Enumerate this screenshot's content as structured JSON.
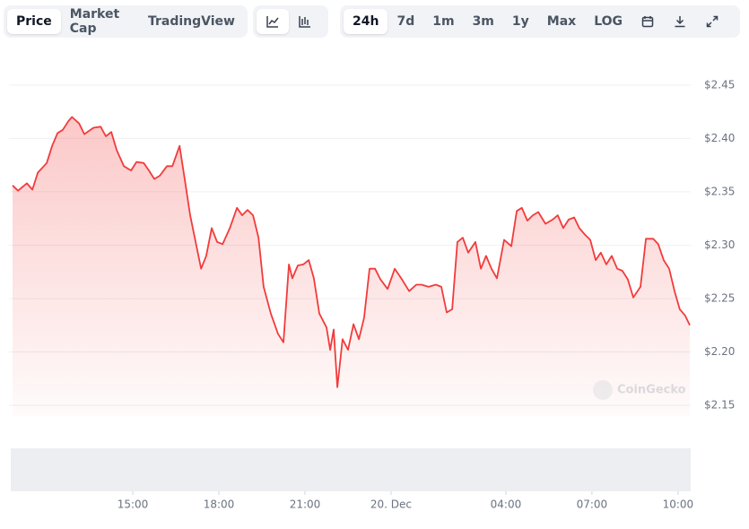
{
  "toolbar": {
    "views": [
      "Price",
      "Market Cap",
      "TradingView"
    ],
    "ranges": [
      "24h",
      "7d",
      "1m",
      "3m",
      "1y",
      "Max",
      "LOG"
    ]
  },
  "watermark": "CoinGecko",
  "chart_data": {
    "type": "line",
    "color": "#f23b3b",
    "x": [
      10.81,
      11.0,
      11.31,
      11.5,
      11.69,
      12.0,
      12.19,
      12.38,
      12.56,
      12.75,
      12.88,
      13.13,
      13.31,
      13.63,
      13.88,
      14.06,
      14.25,
      14.44,
      14.69,
      14.94,
      15.13,
      15.38,
      15.56,
      15.75,
      15.94,
      16.19,
      16.38,
      16.63,
      16.81,
      17.0,
      17.19,
      17.38,
      17.56,
      17.75,
      17.94,
      18.13,
      18.38,
      18.63,
      18.81,
      19.0,
      19.19,
      19.38,
      19.56,
      19.81,
      20.06,
      20.25,
      20.44,
      20.56,
      20.75,
      20.94,
      21.13,
      21.31,
      21.5,
      21.75,
      21.88,
      22.0,
      22.13,
      22.31,
      22.5,
      22.69,
      22.88,
      23.06,
      23.25,
      23.44,
      23.63,
      23.88,
      24.13,
      24.38,
      24.63,
      24.88,
      25.06,
      25.31,
      25.56,
      25.75,
      25.94,
      26.13,
      26.31,
      26.5,
      26.69,
      26.94,
      27.13,
      27.31,
      27.5,
      27.69,
      27.94,
      28.19,
      28.38,
      28.56,
      28.75,
      28.94,
      29.13,
      29.38,
      29.63,
      29.81,
      30.0,
      30.19,
      30.38,
      30.56,
      30.75,
      30.94,
      31.13,
      31.31,
      31.5,
      31.69,
      31.88,
      32.06,
      32.25,
      32.44,
      32.69,
      32.88,
      33.13,
      33.31,
      33.5,
      33.69,
      33.88,
      34.06,
      34.25,
      34.41
    ],
    "values": [
      2.356,
      2.351,
      2.358,
      2.352,
      2.368,
      2.377,
      2.393,
      2.405,
      2.408,
      2.416,
      2.42,
      2.414,
      2.404,
      2.41,
      2.411,
      2.402,
      2.406,
      2.389,
      2.374,
      2.37,
      2.378,
      2.377,
      2.37,
      2.362,
      2.365,
      2.374,
      2.374,
      2.393,
      2.362,
      2.328,
      2.303,
      2.278,
      2.29,
      2.316,
      2.303,
      2.301,
      2.316,
      2.335,
      2.328,
      2.333,
      2.328,
      2.307,
      2.261,
      2.236,
      2.217,
      2.209,
      2.282,
      2.269,
      2.281,
      2.282,
      2.286,
      2.269,
      2.236,
      2.223,
      2.202,
      2.221,
      2.167,
      2.212,
      2.202,
      2.226,
      2.212,
      2.232,
      2.278,
      2.278,
      2.268,
      2.259,
      2.278,
      2.268,
      2.257,
      2.263,
      2.263,
      2.261,
      2.263,
      2.261,
      2.237,
      2.24,
      2.303,
      2.307,
      2.293,
      2.303,
      2.278,
      2.29,
      2.278,
      2.269,
      2.305,
      2.299,
      2.332,
      2.335,
      2.323,
      2.328,
      2.331,
      2.32,
      2.324,
      2.328,
      2.316,
      2.324,
      2.326,
      2.316,
      2.31,
      2.305,
      2.286,
      2.293,
      2.282,
      2.29,
      2.278,
      2.276,
      2.268,
      2.251,
      2.261,
      2.306,
      2.306,
      2.301,
      2.286,
      2.278,
      2.257,
      2.24,
      2.234,
      2.225
    ],
    "xlim": [
      10.81,
      34.41
    ],
    "xticks": [
      {
        "value": 15,
        "label": "15:00"
      },
      {
        "value": 18,
        "label": "18:00"
      },
      {
        "value": 21,
        "label": "21:00"
      },
      {
        "value": 24,
        "label": "20. Dec"
      },
      {
        "value": 28,
        "label": "04:00"
      },
      {
        "value": 31,
        "label": "07:00"
      },
      {
        "value": 34,
        "label": "10:00"
      }
    ],
    "ylim": [
      2.14,
      2.47
    ],
    "yticks": [
      {
        "value": 2.15,
        "label": "$2.15"
      },
      {
        "value": 2.2,
        "label": "$2.20"
      },
      {
        "value": 2.25,
        "label": "$2.25"
      },
      {
        "value": 2.3,
        "label": "$2.30"
      },
      {
        "value": 2.35,
        "label": "$2.35"
      },
      {
        "value": 2.4,
        "label": "$2.40"
      },
      {
        "value": 2.45,
        "label": "$2.45"
      }
    ],
    "grid": true
  }
}
